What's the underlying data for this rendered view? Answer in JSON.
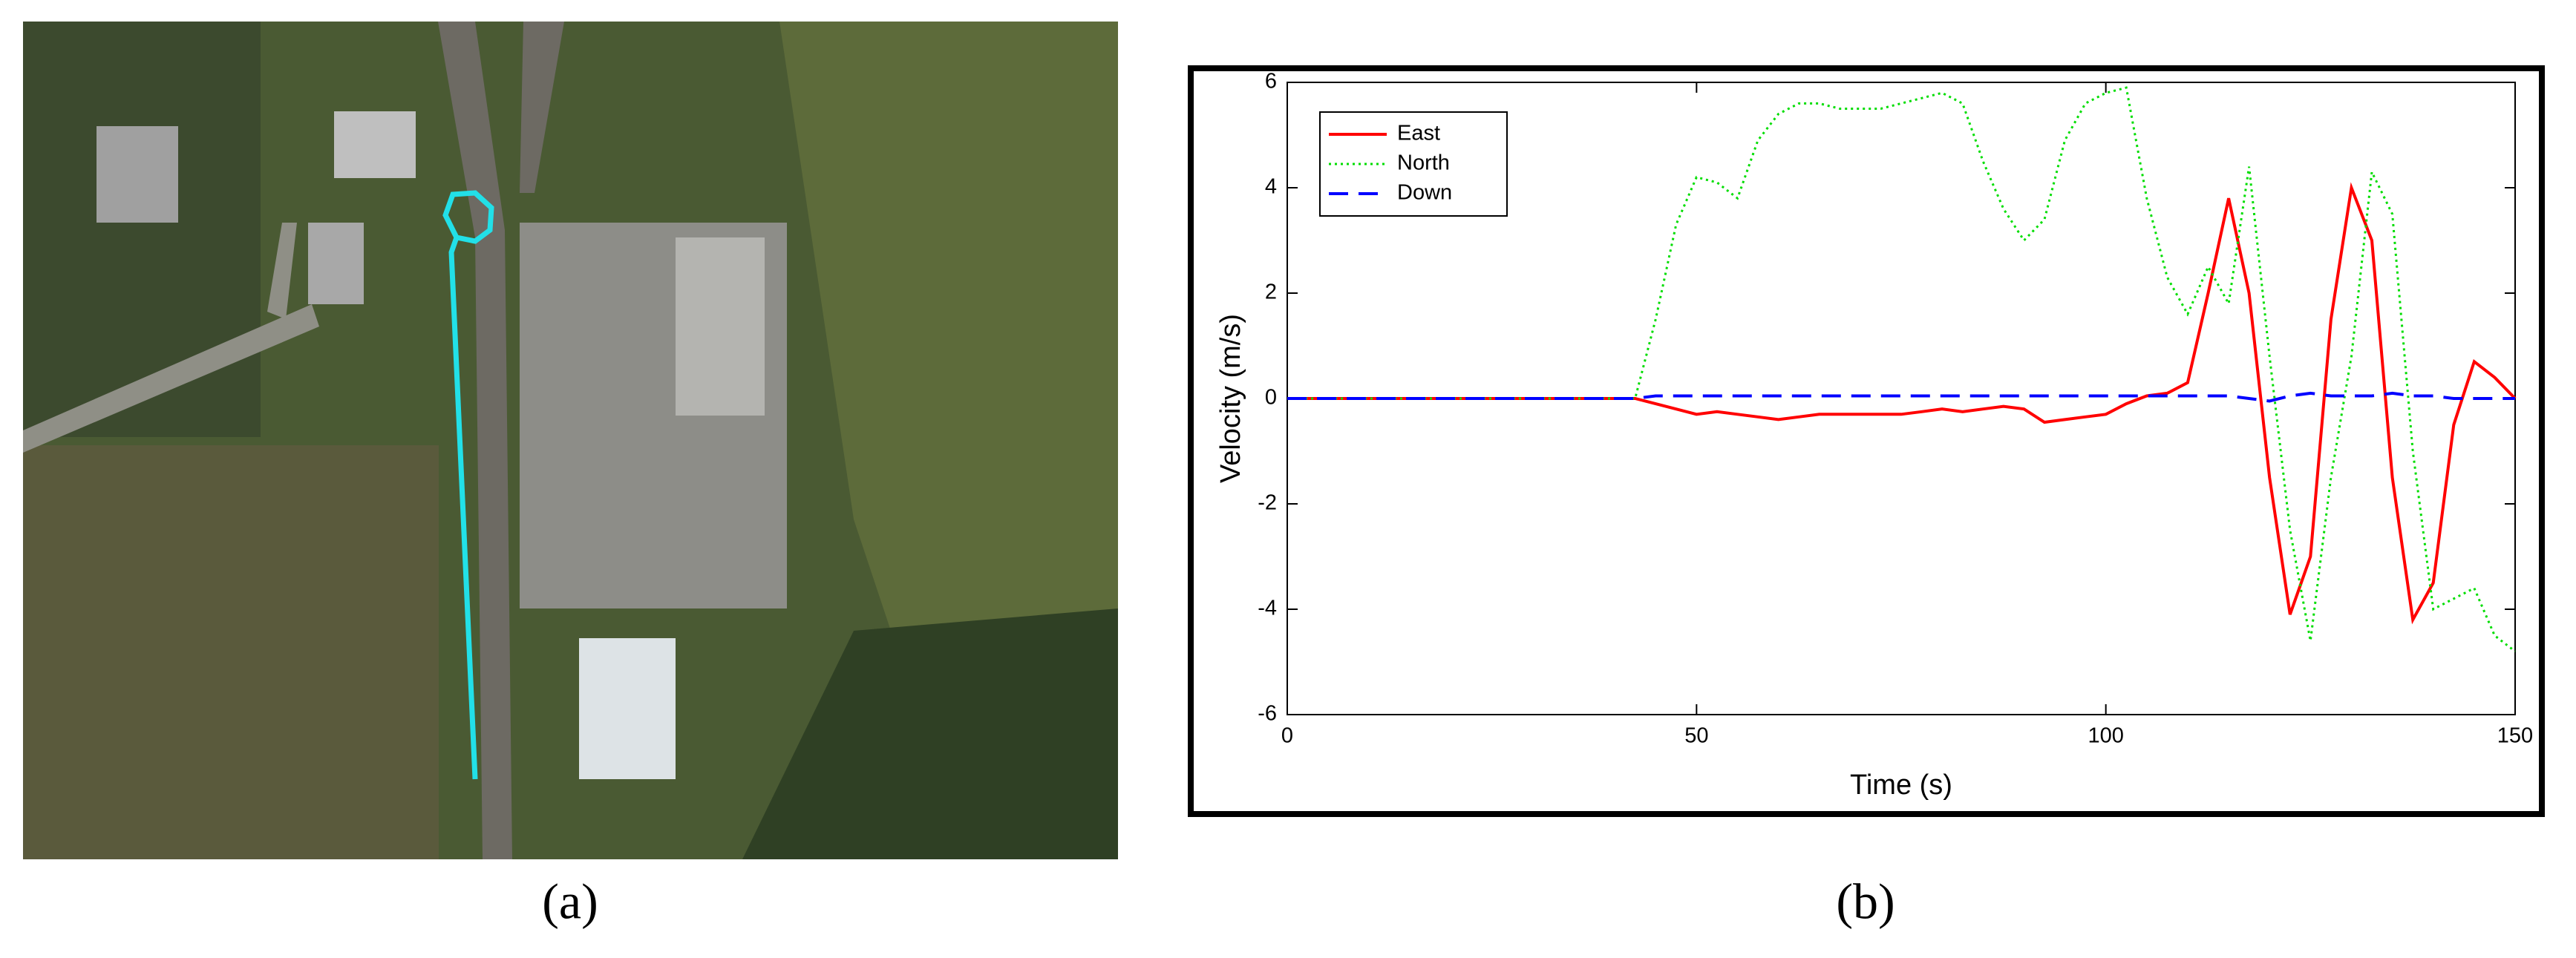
{
  "chart_data": {
    "type": "line",
    "xlabel": "Time (s)",
    "ylabel": "Velocity (m/s)",
    "x": [
      0,
      2.5,
      5,
      7.5,
      10,
      12.5,
      15,
      17.5,
      20,
      22.5,
      25,
      27.5,
      30,
      32.5,
      35,
      37.5,
      40,
      42.5,
      45,
      47.5,
      50,
      52.5,
      55,
      57.5,
      60,
      62.5,
      65,
      67.5,
      70,
      72.5,
      75,
      77.5,
      80,
      82.5,
      85,
      87.5,
      90,
      92.5,
      95,
      97.5,
      100,
      102.5,
      105,
      107.5,
      110,
      112.5,
      115,
      117.5,
      120,
      122.5,
      125,
      127.5,
      130,
      132.5,
      135,
      137.5,
      140,
      142.5,
      145,
      147.5,
      150
    ],
    "series": [
      {
        "name": "East",
        "color": "#ff0000",
        "linestyle": "solid",
        "values": [
          0,
          0,
          0,
          0,
          0,
          0,
          0,
          0,
          0,
          0,
          0,
          0,
          0,
          0,
          0,
          0,
          0,
          0,
          -0.1,
          -0.2,
          -0.3,
          -0.25,
          -0.3,
          -0.35,
          -0.4,
          -0.35,
          -0.3,
          -0.3,
          -0.3,
          -0.3,
          -0.3,
          -0.25,
          -0.2,
          -0.25,
          -0.2,
          -0.15,
          -0.2,
          -0.45,
          -0.4,
          -0.35,
          -0.3,
          -0.1,
          0.05,
          0.1,
          0.3,
          2.0,
          3.8,
          2.0,
          -1.5,
          -4.1,
          -3.0,
          1.5,
          4.0,
          3.0,
          -1.5,
          -4.2,
          -3.5,
          -0.5,
          0.7,
          0.4,
          0
        ]
      },
      {
        "name": "North",
        "color": "#00dd00",
        "linestyle": "dotted",
        "values": [
          0,
          0,
          0,
          0,
          0,
          0,
          0,
          0,
          0,
          0,
          0,
          0,
          0,
          0,
          0,
          0,
          0,
          0,
          1.5,
          3.3,
          4.2,
          4.1,
          3.8,
          4.9,
          5.4,
          5.6,
          5.6,
          5.5,
          5.5,
          5.5,
          5.6,
          5.7,
          5.8,
          5.6,
          4.5,
          3.6,
          3.0,
          3.4,
          4.9,
          5.6,
          5.8,
          5.9,
          3.8,
          2.3,
          1.6,
          2.5,
          1.8,
          4.4,
          0.8,
          -2.5,
          -4.6,
          -1.5,
          0.8,
          4.3,
          3.5,
          -1.0,
          -4.0,
          -3.8,
          -3.6,
          -4.5,
          -4.8
        ]
      },
      {
        "name": "Down",
        "color": "#0000ff",
        "linestyle": "dashed",
        "values": [
          0,
          0,
          0,
          0,
          0,
          0,
          0,
          0,
          0,
          0,
          0,
          0,
          0,
          0,
          0,
          0,
          0,
          0,
          0.05,
          0.05,
          0.05,
          0.05,
          0.05,
          0.05,
          0.05,
          0.05,
          0.05,
          0.05,
          0.05,
          0.05,
          0.05,
          0.05,
          0.05,
          0.05,
          0.05,
          0.05,
          0.05,
          0.05,
          0.05,
          0.05,
          0.05,
          0.05,
          0.05,
          0.05,
          0.05,
          0.05,
          0.05,
          0,
          -0.05,
          0.05,
          0.1,
          0.05,
          0.05,
          0.05,
          0.1,
          0.05,
          0.05,
          0,
          0,
          0,
          0
        ]
      }
    ],
    "xlim": [
      0,
      150
    ],
    "xticks": [
      0,
      50,
      100,
      150
    ],
    "ylim": [
      -6,
      6
    ],
    "yticks": [
      -6,
      -4,
      -2,
      0,
      2,
      4,
      6
    ],
    "grid": false,
    "legend": "upper left"
  },
  "captions": [
    "(a)",
    "(b)"
  ]
}
